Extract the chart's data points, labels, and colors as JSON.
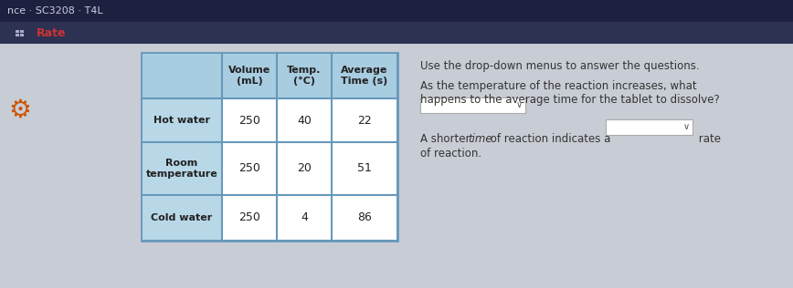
{
  "title_bar_text": "nce · SC3208 · T4L",
  "nav_bar_color": "#2d3152",
  "nav_text_color": "#cc3333",
  "top_bar_color": "#1e2040",
  "content_bg": "#c8ccd4",
  "table_header_bg": "#a8cce0",
  "table_data_bg": "#ffffff",
  "table_left_header_bg": "#b8d8e8",
  "table_border_color": "#6699bb",
  "row_labels": [
    "Hot water",
    "Room\ntemperature",
    "Cold water"
  ],
  "col_headers": [
    "Volume\n(mL)",
    "Temp.\n(°C)",
    "Average\nTime (s)"
  ],
  "data": [
    [
      250,
      40,
      22
    ],
    [
      250,
      20,
      51
    ],
    [
      250,
      4,
      86
    ]
  ],
  "question_title": "Use the drop-down menus to answer the questions.",
  "question1_line1": "As the temperature of the reaction increases, what",
  "question1_line2": "happens to the average time for the tablet to dissolve?",
  "q2_pre": "A shorter ",
  "q2_italic": "time",
  "q2_mid": " of reaction indicates a",
  "q2_post": " rate",
  "q2_line2": "of reaction.",
  "icon_color": "#cc5500",
  "text_color": "#333333",
  "white": "#ffffff",
  "dropdown_border": "#aaaaaa",
  "title_text_color": "#ccccdd"
}
